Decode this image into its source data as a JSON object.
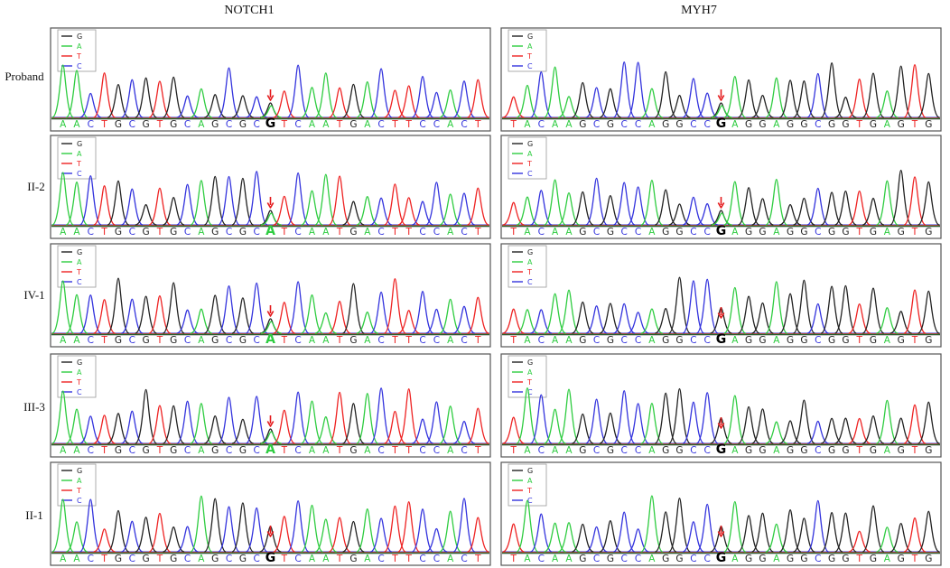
{
  "columns": [
    "NOTCH1",
    "MYH7"
  ],
  "rows": [
    "Proband",
    "II-2",
    "IV-1",
    "III-3",
    "II-1"
  ],
  "legend": [
    "G",
    "A",
    "T",
    "C"
  ],
  "colors": {
    "G": "#222222",
    "A": "#2ecc40",
    "T": "#ee2222",
    "C": "#3333dd",
    "arrow": "#e41a1c",
    "frame": "#555555"
  },
  "sequences": {
    "NOTCH1": {
      "Proband": "AACTGCGTGCAGCGCGTCAATGACTTCCACT",
      "II-2": "AACTGCGTGCAGCGCATCAATGACTTCCACT",
      "IV-1": "AACTGCGTGCAGCGCATCAATGACTTCCACT",
      "III-3": "AACTGCGTGCAGCGCATCAATGACTTCCACT",
      "II-1": "AACTGCGTGCAGCGCGTCAATGACTTCCACT"
    },
    "MYH7": {
      "Proband": "TACAAGCGCCAGGCCGAGGAGGCGGTGAGTG",
      "II-2": "TACAAGCGCCAGGCCGAGGAGGCGGTGAGTG",
      "IV-1": "TACAAGCGCCAGGCCGAGGAGGCGGTGAGTG",
      "III-3": "TACAAGCGCCAGGCCGAGGAGGCGGTGAGTG",
      "II-1": "TACAAGCGCCAGGCCGAGGAGGCGGTGAGTG"
    }
  },
  "variant_index": {
    "NOTCH1": 15,
    "MYH7": 15
  },
  "heterozygous": {
    "NOTCH1": {
      "Proband": true,
      "II-2": true,
      "IV-1": true,
      "III-3": true,
      "II-1": false
    },
    "MYH7": {
      "Proband": true,
      "II-2": true,
      "IV-1": false,
      "III-3": false,
      "II-1": false
    }
  }
}
